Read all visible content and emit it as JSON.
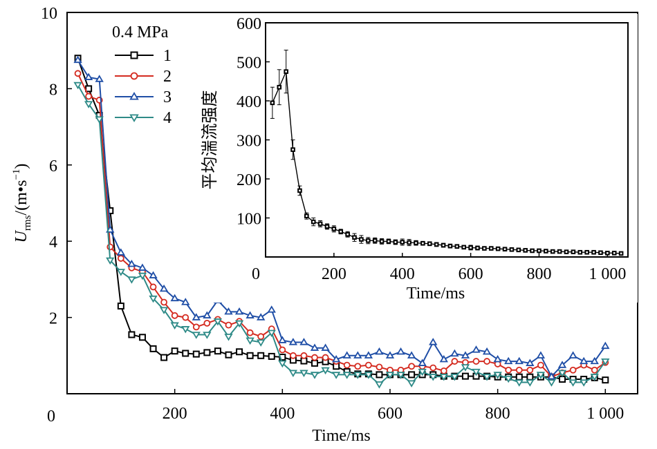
{
  "chart_data": [
    {
      "type": "line",
      "xlabel": "Time/ms",
      "ylabel_main": "U",
      "ylabel_sub": "rms",
      "ylabel_rest": "/(m•s",
      "ylabel_sup": "−1",
      "ylabel_close": ")",
      "xlim": [
        0,
        1060
      ],
      "ylim": [
        0,
        10
      ],
      "x_tick_values": [
        200,
        400,
        600,
        800,
        1000
      ],
      "x_tick_labels": [
        "200",
        "400",
        "600",
        "800",
        "1 000"
      ],
      "y_tick_values": [
        2,
        4,
        6,
        8,
        10
      ],
      "y_tick_labels": [
        "2",
        "4",
        "6",
        "8",
        "10"
      ],
      "origin_label": "0",
      "legend_title": "0.4 MPa",
      "legend_position": "top-left",
      "grid": false,
      "series": [
        {
          "name": "1",
          "color": "#000000",
          "marker": "square",
          "x": [
            20,
            40,
            60,
            80,
            100,
            120,
            140,
            160,
            180,
            200,
            220,
            240,
            260,
            280,
            300,
            320,
            340,
            360,
            380,
            400,
            420,
            440,
            460,
            480,
            500,
            520,
            540,
            560,
            580,
            600,
            620,
            640,
            660,
            680,
            700,
            720,
            740,
            760,
            780,
            800,
            820,
            840,
            860,
            880,
            900,
            920,
            940,
            960,
            980,
            1000
          ],
          "values": [
            8.8,
            8.0,
            7.3,
            4.8,
            2.3,
            1.55,
            1.48,
            1.18,
            0.95,
            1.12,
            1.06,
            1.04,
            1.08,
            1.12,
            1.02,
            1.1,
            1.0,
            1.0,
            0.98,
            0.96,
            0.88,
            0.86,
            0.8,
            0.84,
            0.72,
            0.58,
            0.52,
            0.52,
            0.5,
            0.5,
            0.5,
            0.5,
            0.5,
            0.5,
            0.46,
            0.46,
            0.46,
            0.46,
            0.46,
            0.44,
            0.44,
            0.44,
            0.44,
            0.44,
            0.44,
            0.38,
            0.38,
            0.38,
            0.42,
            0.36
          ]
        },
        {
          "name": "2",
          "color": "#d42a1f",
          "marker": "circle",
          "x": [
            20,
            40,
            60,
            80,
            100,
            120,
            140,
            160,
            180,
            200,
            220,
            240,
            260,
            280,
            300,
            320,
            340,
            360,
            380,
            400,
            420,
            440,
            460,
            480,
            500,
            520,
            540,
            560,
            580,
            600,
            620,
            640,
            660,
            680,
            700,
            720,
            740,
            760,
            780,
            800,
            820,
            840,
            860,
            880,
            900,
            920,
            940,
            960,
            980,
            1000
          ],
          "values": [
            8.4,
            7.8,
            7.7,
            3.85,
            3.55,
            3.3,
            3.2,
            2.8,
            2.4,
            2.05,
            2.0,
            1.75,
            1.85,
            1.95,
            1.8,
            1.9,
            1.6,
            1.5,
            1.7,
            1.15,
            1.0,
            1.0,
            0.95,
            0.95,
            0.85,
            0.75,
            0.72,
            0.75,
            0.7,
            0.62,
            0.62,
            0.72,
            0.72,
            0.68,
            0.6,
            0.85,
            0.82,
            0.85,
            0.85,
            0.78,
            0.62,
            0.62,
            0.62,
            0.75,
            0.45,
            0.55,
            0.62,
            0.75,
            0.62,
            0.82
          ]
        },
        {
          "name": "3",
          "color": "#1f4ea6",
          "marker": "triangle-up",
          "x": [
            20,
            40,
            60,
            80,
            100,
            120,
            140,
            160,
            180,
            200,
            220,
            240,
            260,
            280,
            300,
            320,
            340,
            360,
            380,
            400,
            420,
            440,
            460,
            480,
            500,
            520,
            540,
            560,
            580,
            600,
            620,
            640,
            660,
            680,
            700,
            720,
            740,
            760,
            780,
            800,
            820,
            840,
            860,
            880,
            900,
            920,
            940,
            960,
            980,
            1000
          ],
          "values": [
            8.75,
            8.3,
            8.25,
            4.3,
            3.7,
            3.4,
            3.3,
            3.1,
            2.75,
            2.5,
            2.4,
            2.0,
            2.05,
            2.45,
            2.15,
            2.15,
            2.05,
            2.0,
            2.2,
            1.4,
            1.35,
            1.35,
            1.2,
            1.2,
            0.9,
            1.0,
            1.0,
            1.0,
            1.1,
            1.0,
            1.1,
            1.0,
            0.8,
            1.35,
            0.9,
            1.05,
            1.0,
            1.15,
            1.1,
            0.9,
            0.85,
            0.85,
            0.8,
            1.0,
            0.45,
            0.75,
            1.0,
            0.85,
            0.85,
            1.25
          ]
        },
        {
          "name": "4",
          "color": "#2e8a87",
          "marker": "triangle-down",
          "x": [
            20,
            40,
            60,
            80,
            100,
            120,
            140,
            160,
            180,
            200,
            220,
            240,
            260,
            280,
            300,
            320,
            340,
            360,
            380,
            400,
            420,
            440,
            460,
            480,
            500,
            520,
            540,
            560,
            580,
            600,
            620,
            640,
            660,
            680,
            700,
            720,
            740,
            760,
            780,
            800,
            820,
            840,
            860,
            880,
            900,
            920,
            940,
            960,
            980,
            1000
          ],
          "values": [
            8.1,
            7.6,
            7.2,
            3.5,
            3.2,
            3.0,
            3.1,
            2.5,
            2.2,
            1.8,
            1.7,
            1.55,
            1.55,
            1.9,
            1.5,
            1.85,
            1.4,
            1.35,
            1.6,
            0.8,
            0.55,
            0.55,
            0.5,
            0.62,
            0.5,
            0.5,
            0.5,
            0.5,
            0.25,
            0.5,
            0.5,
            0.28,
            0.58,
            0.45,
            0.45,
            0.45,
            0.7,
            0.58,
            0.45,
            0.5,
            0.4,
            0.3,
            0.3,
            0.5,
            0.3,
            0.55,
            0.3,
            0.3,
            0.45,
            0.85
          ]
        }
      ]
    },
    {
      "type": "line",
      "ylabel": "平均湍流强度",
      "xlabel": "Time/ms",
      "xlim": [
        0,
        1060
      ],
      "ylim": [
        0,
        600
      ],
      "x_tick_values": [
        200,
        400,
        600,
        800,
        1000
      ],
      "x_tick_labels": [
        "200",
        "400",
        "600",
        "800",
        "1 000"
      ],
      "y_tick_values": [
        100,
        200,
        300,
        400,
        500,
        600
      ],
      "y_tick_labels": [
        "100",
        "200",
        "300",
        "400",
        "500",
        "600"
      ],
      "origin_label": "0",
      "grid": false,
      "series": [
        {
          "color": "#000000",
          "marker": "square",
          "x": [
            20,
            40,
            60,
            80,
            100,
            120,
            140,
            160,
            180,
            200,
            220,
            240,
            260,
            280,
            300,
            320,
            340,
            360,
            380,
            400,
            420,
            440,
            460,
            480,
            500,
            520,
            540,
            560,
            580,
            600,
            620,
            640,
            660,
            680,
            700,
            720,
            740,
            760,
            780,
            800,
            820,
            840,
            860,
            880,
            900,
            920,
            940,
            960,
            980,
            1000,
            1020,
            1040
          ],
          "values": [
            395,
            435,
            475,
            275,
            170,
            105,
            90,
            85,
            78,
            72,
            65,
            58,
            50,
            45,
            42,
            42,
            40,
            40,
            38,
            38,
            37,
            36,
            35,
            34,
            32,
            30,
            28,
            27,
            25,
            24,
            23,
            22,
            22,
            21,
            20,
            19,
            18,
            17,
            16,
            16,
            15,
            14,
            14,
            13,
            13,
            12,
            12,
            12,
            11,
            10,
            10,
            9
          ],
          "error": [
            40,
            45,
            55,
            25,
            12,
            8,
            10,
            8,
            7,
            8,
            6,
            7,
            10,
            10,
            8,
            7,
            7,
            6,
            6,
            8,
            8,
            6,
            5,
            5,
            5,
            5,
            5,
            5,
            4,
            6,
            5,
            4,
            4,
            4,
            3,
            3,
            3,
            3,
            3,
            3,
            3,
            2,
            2,
            2,
            2,
            2,
            2,
            2,
            2,
            2,
            2,
            2
          ]
        }
      ]
    }
  ]
}
